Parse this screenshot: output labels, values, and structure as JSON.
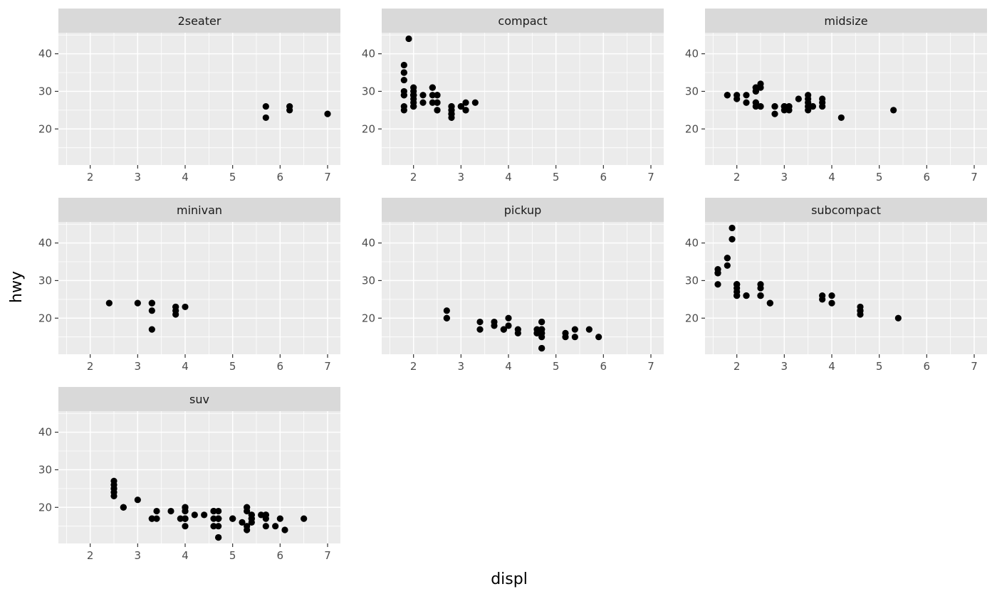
{
  "chart_data": {
    "type": "scatter",
    "title": "",
    "xlabel": "displ",
    "ylabel": "hwy",
    "facet_by": "class",
    "xlim": [
      1.33,
      7.27
    ],
    "ylim": [
      10.4,
      45.6
    ],
    "x_ticks": [
      2,
      3,
      4,
      5,
      6,
      7
    ],
    "y_ticks": [
      20,
      30,
      40
    ],
    "x_minor": [
      1.5,
      2.5,
      3.5,
      4.5,
      5.5,
      6.5
    ],
    "y_minor": [
      15,
      25,
      35,
      45
    ],
    "grid": "on",
    "legend_position": "none",
    "theme": {
      "strip_bg": "#d9d9d9",
      "strip_text": "#1a1a1a",
      "panel_bg": "#ebebeb",
      "grid_color": "#ffffff",
      "axis_text": "#4d4d4d",
      "tick_color": "#333333",
      "point_color": "#000000"
    },
    "facets": [
      {
        "label": "2seater",
        "points": [
          [
            5.7,
            26
          ],
          [
            5.7,
            23
          ],
          [
            6.2,
            26
          ],
          [
            6.2,
            25
          ],
          [
            7.0,
            24
          ]
        ]
      },
      {
        "label": "compact",
        "points": [
          [
            1.8,
            29
          ],
          [
            1.8,
            29
          ],
          [
            2.0,
            31
          ],
          [
            2.0,
            30
          ],
          [
            2.8,
            26
          ],
          [
            2.8,
            26
          ],
          [
            3.1,
            27
          ],
          [
            1.8,
            26
          ],
          [
            1.8,
            25
          ],
          [
            2.0,
            28
          ],
          [
            2.0,
            27
          ],
          [
            2.8,
            25
          ],
          [
            2.8,
            25
          ],
          [
            3.1,
            25
          ],
          [
            3.1,
            25
          ],
          [
            2.4,
            29
          ],
          [
            2.4,
            27
          ],
          [
            2.2,
            27
          ],
          [
            2.2,
            29
          ],
          [
            2.4,
            31
          ],
          [
            2.4,
            31
          ],
          [
            3.0,
            26
          ],
          [
            3.0,
            26
          ],
          [
            3.3,
            27
          ],
          [
            1.8,
            30
          ],
          [
            1.8,
            33
          ],
          [
            1.8,
            35
          ],
          [
            1.8,
            37
          ],
          [
            1.8,
            35
          ],
          [
            2.0,
            29
          ],
          [
            2.0,
            26
          ],
          [
            2.0,
            29
          ],
          [
            2.0,
            29
          ],
          [
            2.8,
            24
          ],
          [
            1.9,
            44
          ],
          [
            2.0,
            29
          ],
          [
            2.0,
            26
          ],
          [
            2.0,
            29
          ],
          [
            2.0,
            29
          ],
          [
            2.5,
            29
          ],
          [
            2.5,
            29
          ],
          [
            2.8,
            23
          ],
          [
            2.8,
            24
          ],
          [
            2.5,
            25
          ],
          [
            2.5,
            27
          ],
          [
            2.5,
            25
          ],
          [
            2.5,
            27
          ]
        ]
      },
      {
        "label": "midsize",
        "points": [
          [
            2.8,
            24
          ],
          [
            3.1,
            25
          ],
          [
            4.2,
            23
          ],
          [
            2.4,
            27
          ],
          [
            2.4,
            30
          ],
          [
            3.1,
            26
          ],
          [
            3.5,
            29
          ],
          [
            3.6,
            26
          ],
          [
            2.4,
            26
          ],
          [
            2.4,
            27
          ],
          [
            2.4,
            30
          ],
          [
            2.4,
            31
          ],
          [
            2.5,
            26
          ],
          [
            2.5,
            26
          ],
          [
            3.3,
            28
          ],
          [
            2.5,
            31
          ],
          [
            2.5,
            32
          ],
          [
            3.5,
            27
          ],
          [
            3.5,
            26
          ],
          [
            3.0,
            26
          ],
          [
            3.0,
            25
          ],
          [
            3.5,
            25
          ],
          [
            3.1,
            26
          ],
          [
            3.8,
            26
          ],
          [
            3.8,
            27
          ],
          [
            3.8,
            28
          ],
          [
            5.3,
            25
          ],
          [
            2.2,
            29
          ],
          [
            2.2,
            27
          ],
          [
            2.4,
            31
          ],
          [
            2.4,
            31
          ],
          [
            3.0,
            26
          ],
          [
            3.0,
            26
          ],
          [
            3.5,
            28
          ],
          [
            1.8,
            29
          ],
          [
            1.8,
            29
          ],
          [
            2.0,
            28
          ],
          [
            2.0,
            29
          ],
          [
            2.8,
            26
          ],
          [
            2.8,
            26
          ],
          [
            3.6,
            26
          ]
        ]
      },
      {
        "label": "minivan",
        "points": [
          [
            2.4,
            24
          ],
          [
            3.0,
            24
          ],
          [
            3.3,
            22
          ],
          [
            3.3,
            24
          ],
          [
            3.3,
            24
          ],
          [
            3.3,
            17
          ],
          [
            3.8,
            22
          ],
          [
            3.8,
            21
          ],
          [
            3.8,
            23
          ],
          [
            3.8,
            23
          ],
          [
            4.0,
            23
          ]
        ]
      },
      {
        "label": "pickup",
        "points": [
          [
            3.7,
            19
          ],
          [
            3.7,
            18
          ],
          [
            3.9,
            17
          ],
          [
            3.9,
            17
          ],
          [
            4.7,
            19
          ],
          [
            4.7,
            19
          ],
          [
            4.7,
            12
          ],
          [
            4.7,
            17
          ],
          [
            4.7,
            16
          ],
          [
            4.7,
            16
          ],
          [
            4.7,
            12
          ],
          [
            4.7,
            17
          ],
          [
            4.7,
            17
          ],
          [
            4.7,
            16
          ],
          [
            4.7,
            15
          ],
          [
            5.2,
            15
          ],
          [
            5.2,
            16
          ],
          [
            5.7,
            17
          ],
          [
            5.9,
            15
          ],
          [
            4.2,
            16
          ],
          [
            4.2,
            17
          ],
          [
            4.6,
            16
          ],
          [
            4.6,
            16
          ],
          [
            4.6,
            17
          ],
          [
            5.4,
            15
          ],
          [
            5.4,
            17
          ],
          [
            2.7,
            20
          ],
          [
            2.7,
            20
          ],
          [
            2.7,
            22
          ],
          [
            3.4,
            17
          ],
          [
            3.4,
            19
          ],
          [
            4.0,
            18
          ],
          [
            4.0,
            20
          ]
        ]
      },
      {
        "label": "subcompact",
        "points": [
          [
            3.8,
            26
          ],
          [
            3.8,
            25
          ],
          [
            4.0,
            26
          ],
          [
            4.0,
            24
          ],
          [
            4.6,
            21
          ],
          [
            4.6,
            22
          ],
          [
            4.6,
            23
          ],
          [
            4.6,
            22
          ],
          [
            5.4,
            20
          ],
          [
            1.6,
            33
          ],
          [
            1.6,
            32
          ],
          [
            1.6,
            32
          ],
          [
            1.6,
            29
          ],
          [
            1.6,
            32
          ],
          [
            1.8,
            34
          ],
          [
            1.8,
            36
          ],
          [
            1.8,
            36
          ],
          [
            2.0,
            29
          ],
          [
            2.0,
            26
          ],
          [
            2.0,
            29
          ],
          [
            2.0,
            28
          ],
          [
            2.0,
            27
          ],
          [
            2.7,
            24
          ],
          [
            2.7,
            24
          ],
          [
            2.2,
            26
          ],
          [
            2.2,
            26
          ],
          [
            2.5,
            26
          ],
          [
            2.5,
            26
          ],
          [
            2.5,
            26
          ],
          [
            1.9,
            44
          ],
          [
            1.9,
            41
          ],
          [
            2.0,
            29
          ],
          [
            2.0,
            26
          ],
          [
            2.5,
            28
          ],
          [
            2.5,
            29
          ]
        ]
      },
      {
        "label": "suv",
        "points": [
          [
            5.3,
            20
          ],
          [
            5.3,
            15
          ],
          [
            5.3,
            20
          ],
          [
            5.7,
            17
          ],
          [
            6.0,
            17
          ],
          [
            5.3,
            19
          ],
          [
            5.3,
            14
          ],
          [
            5.7,
            15
          ],
          [
            6.5,
            17
          ],
          [
            3.9,
            17
          ],
          [
            4.7,
            17
          ],
          [
            4.7,
            12
          ],
          [
            4.7,
            17
          ],
          [
            5.2,
            16
          ],
          [
            5.7,
            18
          ],
          [
            5.9,
            15
          ],
          [
            4.6,
            17
          ],
          [
            5.4,
            17
          ],
          [
            5.4,
            18
          ],
          [
            4.0,
            17
          ],
          [
            4.0,
            17
          ],
          [
            4.0,
            17
          ],
          [
            4.0,
            19
          ],
          [
            4.6,
            19
          ],
          [
            5.0,
            17
          ],
          [
            3.0,
            22
          ],
          [
            3.7,
            19
          ],
          [
            4.0,
            20
          ],
          [
            4.7,
            17
          ],
          [
            4.7,
            12
          ],
          [
            4.7,
            19
          ],
          [
            5.7,
            18
          ],
          [
            6.1,
            14
          ],
          [
            4.0,
            15
          ],
          [
            4.2,
            18
          ],
          [
            4.4,
            18
          ],
          [
            4.6,
            15
          ],
          [
            5.4,
            17
          ],
          [
            5.4,
            16
          ],
          [
            5.4,
            18
          ],
          [
            4.0,
            17
          ],
          [
            4.0,
            19
          ],
          [
            4.6,
            19
          ],
          [
            5.0,
            17
          ],
          [
            3.3,
            17
          ],
          [
            3.3,
            17
          ],
          [
            4.0,
            20
          ],
          [
            5.6,
            18
          ],
          [
            2.5,
            25
          ],
          [
            2.5,
            24
          ],
          [
            2.5,
            27
          ],
          [
            2.5,
            26
          ],
          [
            2.5,
            25
          ],
          [
            2.5,
            23
          ],
          [
            2.7,
            20
          ],
          [
            2.7,
            20
          ],
          [
            3.4,
            19
          ],
          [
            3.4,
            17
          ],
          [
            4.0,
            20
          ],
          [
            4.7,
            17
          ],
          [
            4.7,
            15
          ],
          [
            5.7,
            18
          ]
        ]
      }
    ]
  }
}
